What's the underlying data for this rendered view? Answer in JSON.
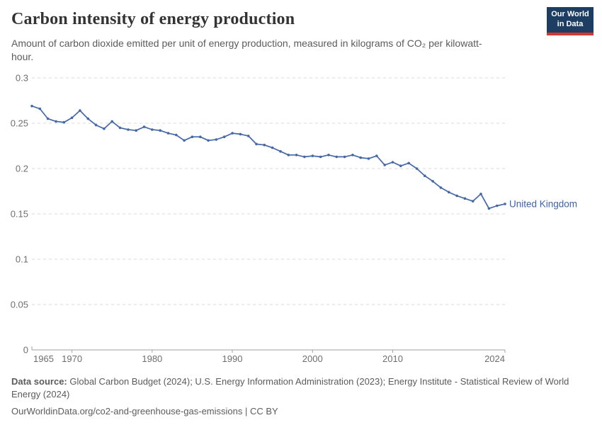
{
  "header": {
    "title": "Carbon intensity of energy production",
    "subtitle": "Amount of carbon dioxide emitted per unit of energy production, measured in kilograms of CO₂ per kilowatt-hour.",
    "logo": {
      "line1": "Our World",
      "line2": "in Data"
    }
  },
  "chart_data": {
    "type": "line",
    "title": "Carbon intensity of energy production",
    "entity_label": "United Kingdom",
    "xlabel": "",
    "ylabel": "",
    "xlim": [
      1965,
      2024
    ],
    "ylim": [
      0,
      0.3
    ],
    "xticks": [
      1965,
      1970,
      1980,
      1990,
      2000,
      2010,
      2024
    ],
    "yticks": [
      0,
      0.05,
      0.1,
      0.15,
      0.2,
      0.25,
      0.3
    ],
    "grid": true,
    "legend_position": "end-of-line-label",
    "line_color": "#4568a8",
    "label_color": "#3d64a8",
    "x": [
      1965,
      1966,
      1967,
      1968,
      1969,
      1970,
      1971,
      1972,
      1973,
      1974,
      1975,
      1976,
      1977,
      1978,
      1979,
      1980,
      1981,
      1982,
      1983,
      1984,
      1985,
      1986,
      1987,
      1988,
      1989,
      1990,
      1991,
      1992,
      1993,
      1994,
      1995,
      1996,
      1997,
      1998,
      1999,
      2000,
      2001,
      2002,
      2003,
      2004,
      2005,
      2006,
      2007,
      2008,
      2009,
      2010,
      2011,
      2012,
      2013,
      2014,
      2015,
      2016,
      2017,
      2018,
      2019,
      2020,
      2021,
      2022,
      2023,
      2024
    ],
    "values": [
      0.269,
      0.266,
      0.255,
      0.252,
      0.251,
      0.256,
      0.264,
      0.255,
      0.248,
      0.244,
      0.252,
      0.245,
      0.243,
      0.242,
      0.246,
      0.243,
      0.242,
      0.239,
      0.237,
      0.231,
      0.235,
      0.235,
      0.231,
      0.232,
      0.235,
      0.239,
      0.238,
      0.236,
      0.227,
      0.226,
      0.223,
      0.219,
      0.215,
      0.215,
      0.213,
      0.214,
      0.213,
      0.215,
      0.213,
      0.213,
      0.215,
      0.212,
      0.211,
      0.214,
      0.204,
      0.207,
      0.203,
      0.206,
      0.2,
      0.192,
      0.186,
      0.179,
      0.174,
      0.17,
      0.167,
      0.164,
      0.172,
      0.156,
      0.159,
      0.161
    ]
  },
  "footer": {
    "source_label": "Data source:",
    "source_rest": " Global Carbon Budget (2024); U.S. Energy Information Administration (2023); Energy Institute - Statistical Review of World Energy (2024)",
    "url_line": "OurWorldinData.org/co2-and-greenhouse-gas-emissions | CC BY"
  }
}
